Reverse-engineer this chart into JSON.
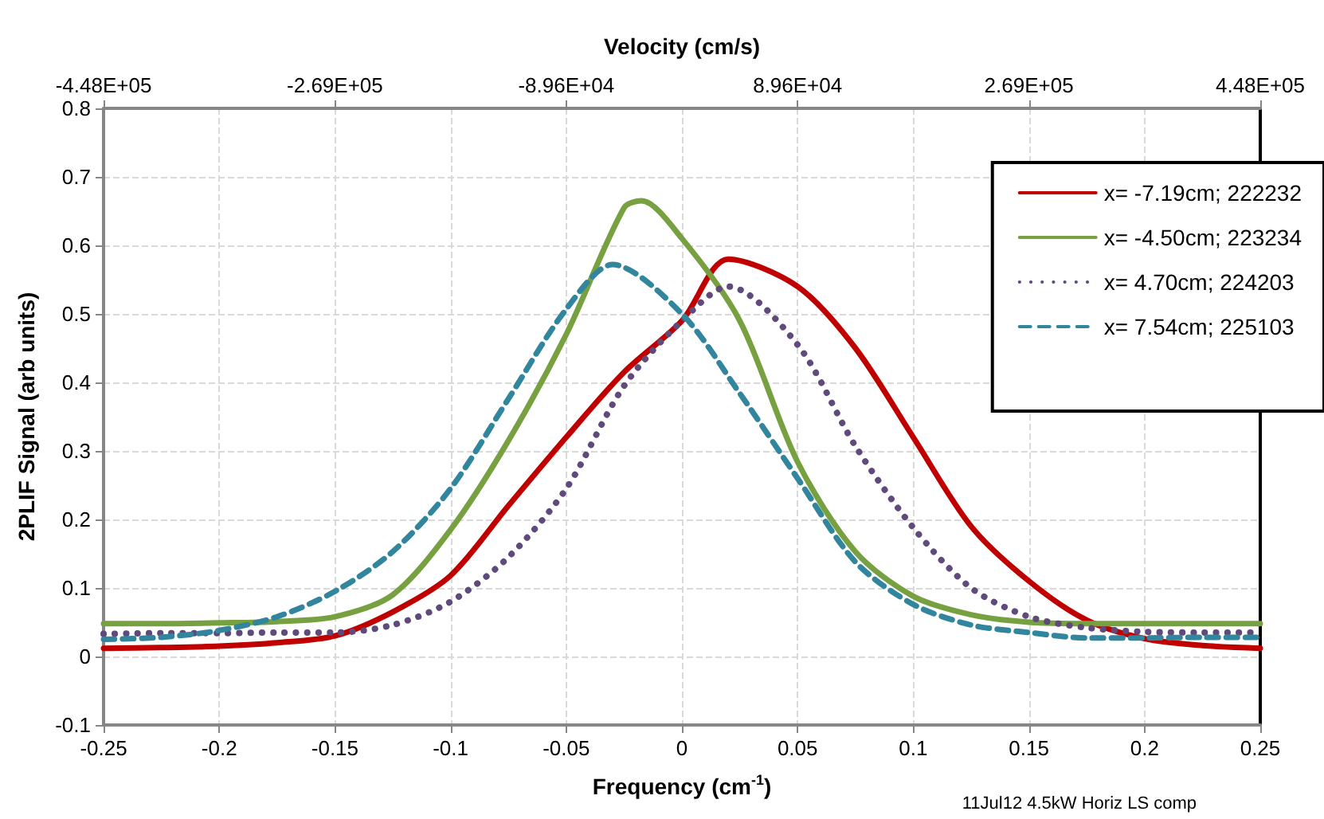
{
  "chart_data": {
    "type": "line",
    "xlabel": "Frequency (cm$^{-1}$)",
    "ylabel": "2PLIF Signal (arb units)",
    "x2label": "Velocity (cm/s)",
    "annotations": [
      "11Jul12 4.5kW Horiz LS comp"
    ],
    "series": [
      {
        "name": "x= -7.19cm; 222232",
        "color": "#c00000",
        "line_style": "solid",
        "x": [
          -0.25,
          -0.225,
          -0.2,
          -0.175,
          -0.15,
          -0.125,
          -0.1,
          -0.075,
          -0.05,
          -0.025,
          0,
          0.02,
          0.05,
          0.075,
          0.1,
          0.125,
          0.15,
          0.175,
          0.2,
          0.225,
          0.25
        ],
        "values": [
          0.012,
          0.013,
          0.015,
          0.02,
          0.03,
          0.065,
          0.118,
          0.22,
          0.32,
          0.415,
          0.49,
          0.58,
          0.54,
          0.45,
          0.32,
          0.19,
          0.11,
          0.053,
          0.026,
          0.016,
          0.012
        ]
      },
      {
        "name": "x= -4.50cm; 223234",
        "color": "#77a040",
        "line_style": "solid",
        "x": [
          -0.25,
          -0.225,
          -0.2,
          -0.175,
          -0.15,
          -0.125,
          -0.1,
          -0.075,
          -0.05,
          -0.025,
          -0.0175,
          0,
          0.025,
          0.05,
          0.075,
          0.1,
          0.125,
          0.15,
          0.175,
          0.2,
          0.225,
          0.25
        ],
        "values": [
          0.048,
          0.048,
          0.049,
          0.051,
          0.058,
          0.09,
          0.185,
          0.315,
          0.47,
          0.655,
          0.665,
          0.61,
          0.49,
          0.284,
          0.153,
          0.088,
          0.061,
          0.05,
          0.048,
          0.048,
          0.048,
          0.048
        ]
      },
      {
        "name": "x= 4.70cm; 224203",
        "color": "#604a7b",
        "line_style": "dotted",
        "x": [
          -0.25,
          -0.225,
          -0.2,
          -0.175,
          -0.15,
          -0.125,
          -0.1,
          -0.075,
          -0.05,
          -0.025,
          0,
          0.02,
          0.05,
          0.075,
          0.1,
          0.125,
          0.15,
          0.175,
          0.2,
          0.225,
          0.25
        ],
        "values": [
          0.033,
          0.034,
          0.034,
          0.035,
          0.035,
          0.046,
          0.08,
          0.145,
          0.245,
          0.395,
          0.49,
          0.54,
          0.455,
          0.307,
          0.188,
          0.1,
          0.058,
          0.042,
          0.036,
          0.035,
          0.035
        ]
      },
      {
        "name": "x= 7.54cm; 225103",
        "color": "#31859c",
        "line_style": "dashed",
        "x": [
          -0.25,
          -0.225,
          -0.2,
          -0.175,
          -0.15,
          -0.125,
          -0.1,
          -0.075,
          -0.05,
          -0.03,
          0,
          0.025,
          0.05,
          0.075,
          0.1,
          0.125,
          0.15,
          0.175,
          0.2,
          0.225,
          0.25
        ],
        "values": [
          0.025,
          0.028,
          0.038,
          0.058,
          0.095,
          0.153,
          0.245,
          0.376,
          0.507,
          0.572,
          0.5,
          0.384,
          0.26,
          0.138,
          0.076,
          0.046,
          0.035,
          0.027,
          0.027,
          0.028,
          0.028
        ]
      }
    ],
    "xlim": [
      -0.25,
      0.25
    ],
    "xticks": [
      -0.25,
      -0.2,
      -0.15,
      -0.1,
      -0.05,
      0,
      0.05,
      0.1,
      0.15,
      0.2,
      0.25
    ],
    "ylim": [
      -0.1,
      0.8
    ],
    "yticks": [
      -0.1,
      0,
      0.1,
      0.2,
      0.3,
      0.4,
      0.5,
      0.6,
      0.7,
      0.8
    ],
    "x2lim": [
      -448000,
      448000
    ],
    "x2ticks": [
      {
        "value": -448000,
        "label": "-4.48E+05"
      },
      {
        "value": -268800,
        "label": "-2.69E+05"
      },
      {
        "value": -89600,
        "label": "-8.96E+04"
      },
      {
        "value": 89600,
        "label": "8.96E+04"
      },
      {
        "value": 268800,
        "label": "2.69E+05"
      },
      {
        "value": 448000,
        "label": "4.48E+05"
      }
    ],
    "grid": true,
    "legend": "top right",
    "marker": "none"
  }
}
